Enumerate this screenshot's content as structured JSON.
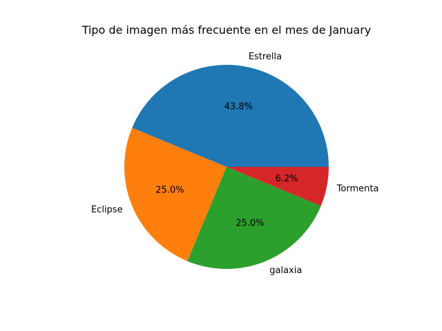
{
  "chart_data": {
    "type": "pie",
    "title": "Tipo de imagen más frecuente en el mes de January",
    "labels": [
      "Estrella",
      "Eclipse",
      "galaxia",
      "Tormenta"
    ],
    "values": [
      43.75,
      25.0,
      25.0,
      6.25
    ],
    "percent_labels": [
      "43.8%",
      "25.0%",
      "25.0%",
      "6.2%"
    ],
    "colors": [
      "#1f77b4",
      "#ff7f0e",
      "#2ca02c",
      "#d62728"
    ],
    "start_angle_deg": 0,
    "direction": "counterclockwise",
    "legend": "none"
  }
}
